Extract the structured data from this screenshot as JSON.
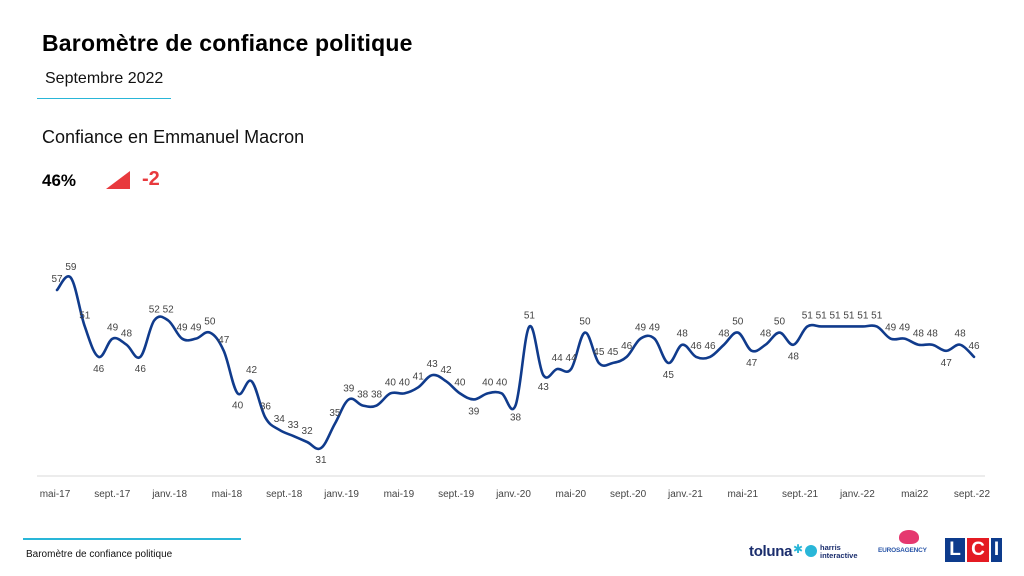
{
  "header": {
    "title": "Baromètre de confiance politique",
    "subtitle": "Septembre 2022"
  },
  "kpi": {
    "section_title": "Confiance en Emmanuel Macron",
    "value": "46%",
    "delta": "-2",
    "arrow_icon": "red-down-triangle-icon",
    "delta_color": "#e8393d"
  },
  "chart_data": {
    "type": "line",
    "x_axis_labels": [
      "mai-17",
      "sept.-17",
      "janv.-18",
      "mai-18",
      "sept.-18",
      "janv.-19",
      "mai-19",
      "sept.-19",
      "janv.-20",
      "mai-20",
      "sept.-20",
      "janv.-21",
      "mai-21",
      "sept.-21",
      "janv.-22",
      "mai22",
      "sept.-22"
    ],
    "series": [
      {
        "values": [
          57,
          59,
          51,
          46,
          49,
          48,
          46,
          52,
          52,
          49,
          49,
          50,
          47,
          40,
          42,
          36,
          34,
          33,
          32,
          31,
          35,
          39,
          38,
          38,
          40,
          40,
          41,
          43,
          42,
          40,
          39,
          40,
          40,
          38,
          51,
          43,
          44,
          44,
          50,
          45,
          45,
          46,
          49,
          49,
          45,
          48,
          46,
          46,
          48,
          50,
          47,
          48,
          50,
          48,
          51,
          51,
          51,
          51,
          51,
          51,
          49,
          49,
          48,
          48,
          47,
          48,
          46
        ]
      }
    ],
    "ylim": [
      15,
      70
    ],
    "line_color": "#103b8c",
    "grid": false
  },
  "footer": {
    "text": "Baromètre de confiance politique",
    "logos": {
      "toluna": "toluna",
      "harris": [
        "harris",
        "interactive"
      ],
      "euros": "EUROSAGENCY",
      "lci": [
        "L",
        "C",
        "I"
      ]
    }
  }
}
